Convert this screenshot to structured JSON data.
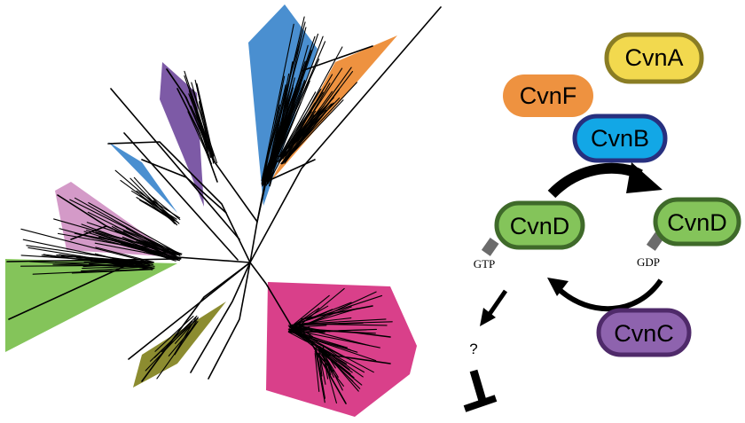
{
  "proteins": {
    "cvnA": "CvnA",
    "cvnF": "CvnF",
    "cvnB": "CvnB",
    "cvnD_left": "CvnD",
    "cvnD_right": "CvnD",
    "cvnC": "CvnC"
  },
  "nucleotides": {
    "gtp": "GTP",
    "gdp": "GDP"
  },
  "unknown_effector": "?",
  "colors": {
    "cvnA": "#f2d94e",
    "cvnA_border": "#8a7d24",
    "cvnF": "#ee9240",
    "cvnB": "#12a7e6",
    "cvnB_border": "#27307f",
    "cvnD": "#84c45a",
    "cvnD_border": "#3f6a2a",
    "cvnC": "#8e63ae",
    "cvnC_border": "#4f2a6a",
    "clade_blue": "#4a8fd0",
    "clade_orange": "#ee9240",
    "clade_purple": "#7d5aa6",
    "clade_pink": "#d49ac8",
    "clade_green": "#84c45a",
    "clade_olive": "#8c8c30",
    "clade_magenta": "#d9408a"
  }
}
